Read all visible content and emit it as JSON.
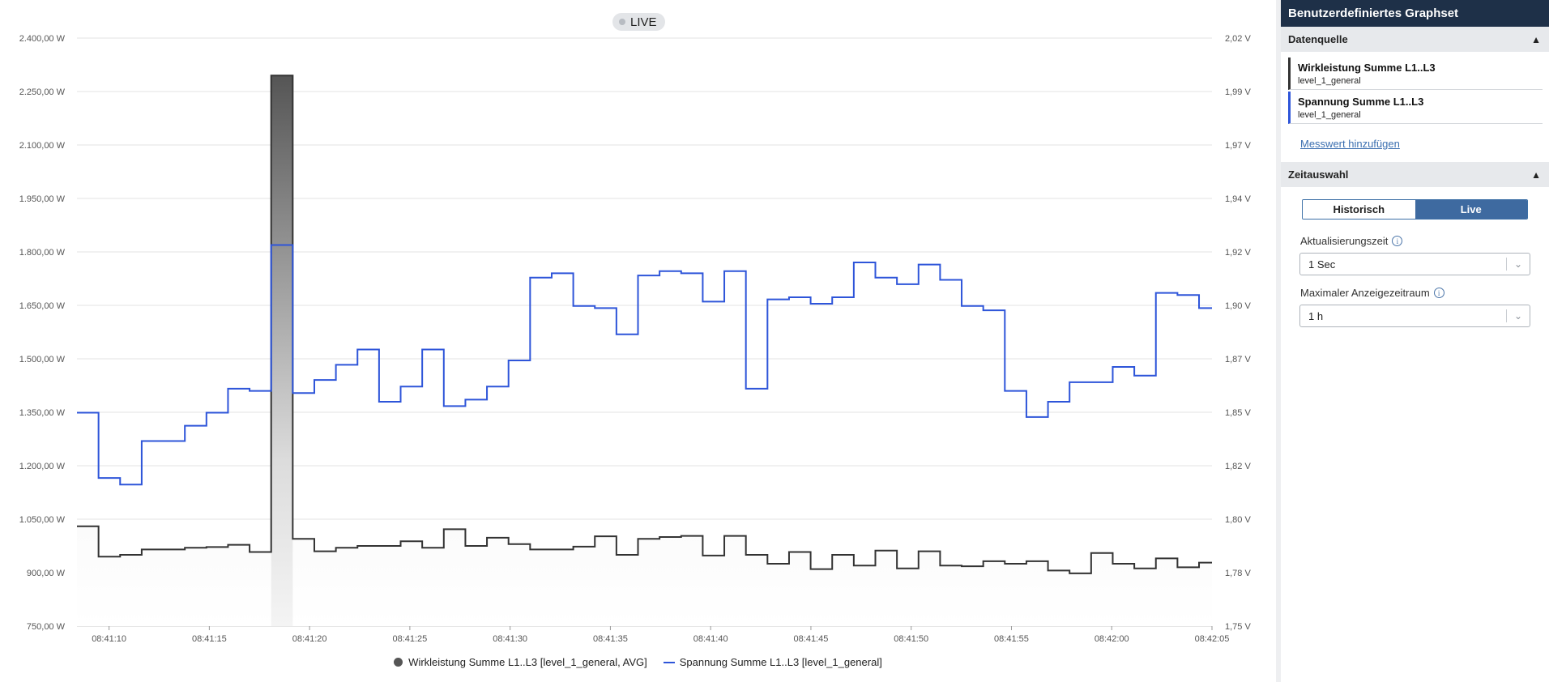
{
  "live_badge": "LIVE",
  "panel": {
    "title": "Benutzerdefiniertes Graphset",
    "datasource_header": "Datenquelle",
    "sources": [
      {
        "name": "Wirkleistung Summe L1..L3",
        "sub": "level_1_general",
        "color": "#333333"
      },
      {
        "name": "Spannung Summe L1..L3",
        "sub": "level_1_general",
        "color": "#2e55d9"
      }
    ],
    "add_link": "Messwert hinzufügen",
    "time_header": "Zeitauswahl",
    "toggle": {
      "historic": "Historisch",
      "live": "Live",
      "active": "live"
    },
    "refresh_label": "Aktualisierungszeit",
    "refresh_value": "1 Sec",
    "max_range_label": "Maximaler Anzeigezeitraum",
    "max_range_value": "1 h"
  },
  "colors": {
    "header_bg": "#1e3048",
    "accent": "#3e6aa0",
    "voltage_line": "#2e55d9",
    "power_line": "#333333"
  },
  "chart_data": {
    "type": "area",
    "step": true,
    "left_axis": {
      "min": 750,
      "max": 2400,
      "ticks": [
        "750,00 W",
        "900,00 W",
        "1.050,00 W",
        "1.200,00 W",
        "1.350,00 W",
        "1.500,00 W",
        "1.650,00 W",
        "1.800,00 W",
        "1.950,00 W",
        "2.100,00 W",
        "2.250,00 W",
        "2.400,00 W"
      ]
    },
    "right_axis": {
      "min": 1.75,
      "max": 2.02,
      "ticks": [
        "1,75 V",
        "1,78 V",
        "1,80 V",
        "1,82 V",
        "1,85 V",
        "1,87 V",
        "1,90 V",
        "1,92 V",
        "1,94 V",
        "1,97 V",
        "1,99 V",
        "2,02 V"
      ]
    },
    "x_axis": {
      "start": "08:41:08.4",
      "end": "08:42:05",
      "ticks": [
        "08:41:10",
        "08:41:15",
        "08:41:20",
        "08:41:25",
        "08:41:30",
        "08:41:35",
        "08:41:40",
        "08:41:45",
        "08:41:50",
        "08:41:55",
        "08:42:00",
        "08:42:05"
      ]
    },
    "grid": true,
    "legend_position": "bottom",
    "series": [
      {
        "name": "Wirkleistung Summe L1..L3 [level_1_general, AVG]",
        "axis": "left",
        "style": "step-area",
        "values": [
          1030,
          945,
          950,
          965,
          965,
          970,
          972,
          978,
          958,
          2295,
          995,
          960,
          970,
          975,
          975,
          988,
          970,
          1022,
          975,
          998,
          980,
          965,
          965,
          973,
          1002,
          950,
          995,
          1000,
          1003,
          948,
          1003,
          950,
          925,
          958,
          910,
          950,
          920,
          962,
          912,
          960,
          920,
          918,
          932,
          925,
          932,
          906,
          898,
          955,
          925,
          912,
          940,
          915,
          928
        ]
      },
      {
        "name": "Spannung Summe L1..L3 [level_1_general]",
        "axis": "right",
        "style": "step-line",
        "values": [
          1.848,
          1.818,
          1.815,
          1.835,
          1.835,
          1.842,
          1.848,
          1.859,
          1.858,
          1.925,
          1.857,
          1.863,
          1.87,
          1.877,
          1.853,
          1.86,
          1.877,
          1.851,
          1.854,
          1.86,
          1.872,
          1.91,
          1.912,
          1.897,
          1.896,
          1.884,
          1.911,
          1.913,
          1.912,
          1.899,
          1.913,
          1.859,
          1.9,
          1.901,
          1.898,
          1.901,
          1.917,
          1.91,
          1.907,
          1.916,
          1.909,
          1.897,
          1.895,
          1.858,
          1.846,
          1.853,
          1.862,
          1.862,
          1.869,
          1.865,
          1.903,
          1.902,
          1.896
        ]
      }
    ]
  }
}
